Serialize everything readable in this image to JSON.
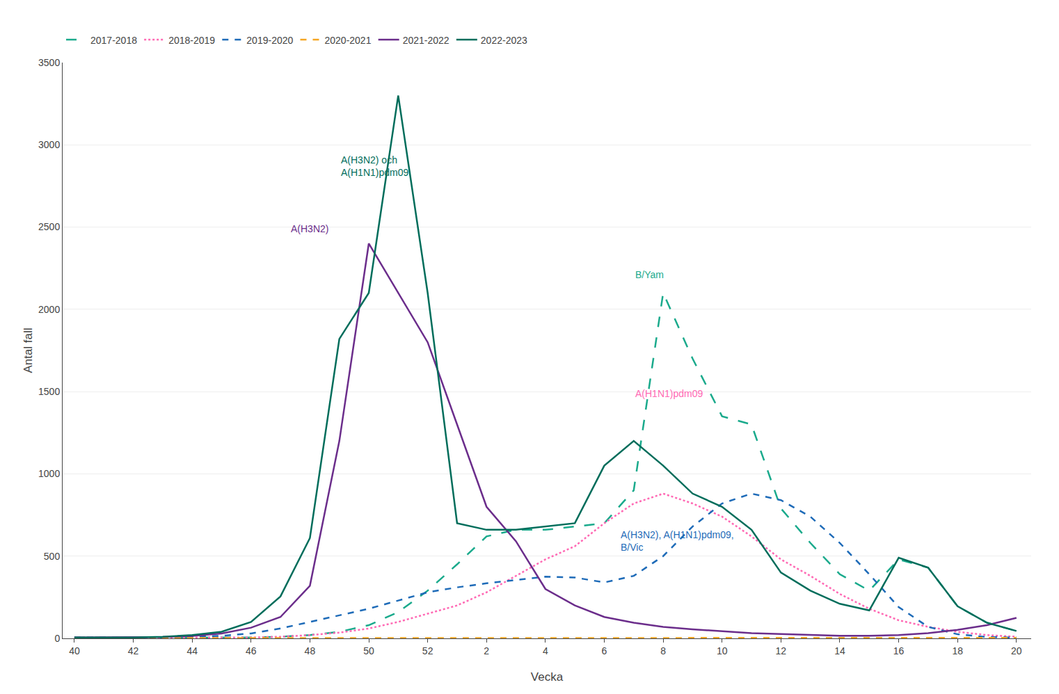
{
  "chart_data": {
    "type": "line",
    "xlabel": "Vecka",
    "ylabel": "Antal fall",
    "x": [
      40,
      41,
      42,
      43,
      44,
      45,
      46,
      47,
      48,
      49,
      50,
      51,
      52,
      1,
      2,
      3,
      4,
      5,
      6,
      7,
      8,
      9,
      10,
      11,
      12,
      13,
      14,
      15,
      16,
      17,
      18,
      19,
      20
    ],
    "xticks": [
      40,
      42,
      44,
      46,
      48,
      50,
      52,
      2,
      4,
      6,
      8,
      10,
      12,
      14,
      16,
      18,
      20
    ],
    "ylim": [
      0,
      3500
    ],
    "yticks": [
      0,
      500,
      1000,
      1500,
      2000,
      2500,
      3000,
      3500
    ],
    "grid": "y",
    "legend": "top",
    "series": [
      {
        "name": "2017-2018",
        "color": "#1aaa8c",
        "line_style": "dashed_long",
        "values": [
          5,
          5,
          5,
          5,
          5,
          5,
          5,
          10,
          20,
          40,
          80,
          160,
          290,
          450,
          620,
          660,
          660,
          680,
          700,
          900,
          2100,
          1700,
          1350,
          1300,
          790,
          580,
          390,
          290,
          480,
          430,
          195,
          95,
          45
        ]
      },
      {
        "name": "2018-2019",
        "color": "#ff69b4",
        "line_style": "dotted",
        "values": [
          5,
          5,
          5,
          5,
          5,
          5,
          5,
          10,
          20,
          35,
          60,
          100,
          150,
          200,
          280,
          380,
          480,
          560,
          700,
          820,
          880,
          820,
          740,
          620,
          480,
          380,
          270,
          180,
          110,
          70,
          40,
          20,
          10
        ]
      },
      {
        "name": "2019-2020",
        "color": "#1e6bb8",
        "line_style": "dashed",
        "values": [
          5,
          5,
          5,
          5,
          10,
          15,
          30,
          60,
          100,
          140,
          180,
          230,
          280,
          310,
          335,
          355,
          375,
          370,
          340,
          380,
          500,
          680,
          820,
          880,
          840,
          740,
          580,
          390,
          190,
          70,
          25,
          8,
          5
        ]
      },
      {
        "name": "2020-2021",
        "color": "#f5a623",
        "line_style": "dashed",
        "values": [
          2,
          2,
          2,
          2,
          2,
          2,
          2,
          2,
          3,
          3,
          3,
          3,
          3,
          3,
          3,
          3,
          3,
          3,
          3,
          3,
          3,
          3,
          3,
          3,
          3,
          3,
          3,
          3,
          3,
          3,
          3,
          3,
          3
        ]
      },
      {
        "name": "2021-2022",
        "color": "#6b2d8b",
        "line_style": "solid",
        "values": [
          5,
          5,
          5,
          8,
          15,
          30,
          65,
          130,
          320,
          1200,
          2400,
          2100,
          1800,
          1300,
          800,
          590,
          300,
          200,
          130,
          95,
          70,
          55,
          42,
          32,
          26,
          20,
          16,
          16,
          20,
          32,
          52,
          80,
          125
        ]
      },
      {
        "name": "2022-2023",
        "color": "#006d5b",
        "line_style": "solid",
        "values": [
          5,
          5,
          5,
          10,
          20,
          40,
          100,
          255,
          610,
          1820,
          2100,
          3300,
          2100,
          700,
          660,
          660,
          680,
          700,
          1050,
          1200,
          1050,
          880,
          800,
          660,
          400,
          290,
          210,
          170,
          490,
          430,
          195,
          95,
          45
        ]
      }
    ],
    "annotations": [
      {
        "text": "A(H3N2) och\nA(H1N1)pdm09",
        "x": 49.0,
        "y": 2870,
        "color": "#006d5b"
      },
      {
        "text": "A(H3N2)",
        "x": 47.3,
        "y": 2490,
        "color": "#6b2d8b"
      },
      {
        "text": "B/Yam",
        "x": 7.0,
        "y": 2210,
        "color": "#1aaa8c"
      },
      {
        "text": "A(H1N1)pdm09",
        "x": 7.0,
        "y": 1490,
        "color": "#ff69b4"
      },
      {
        "text": "A(H3N2), A(H1N1)pdm09,\nB/Vic",
        "x": 6.5,
        "y": 590,
        "color": "#1e6bb8"
      }
    ]
  }
}
